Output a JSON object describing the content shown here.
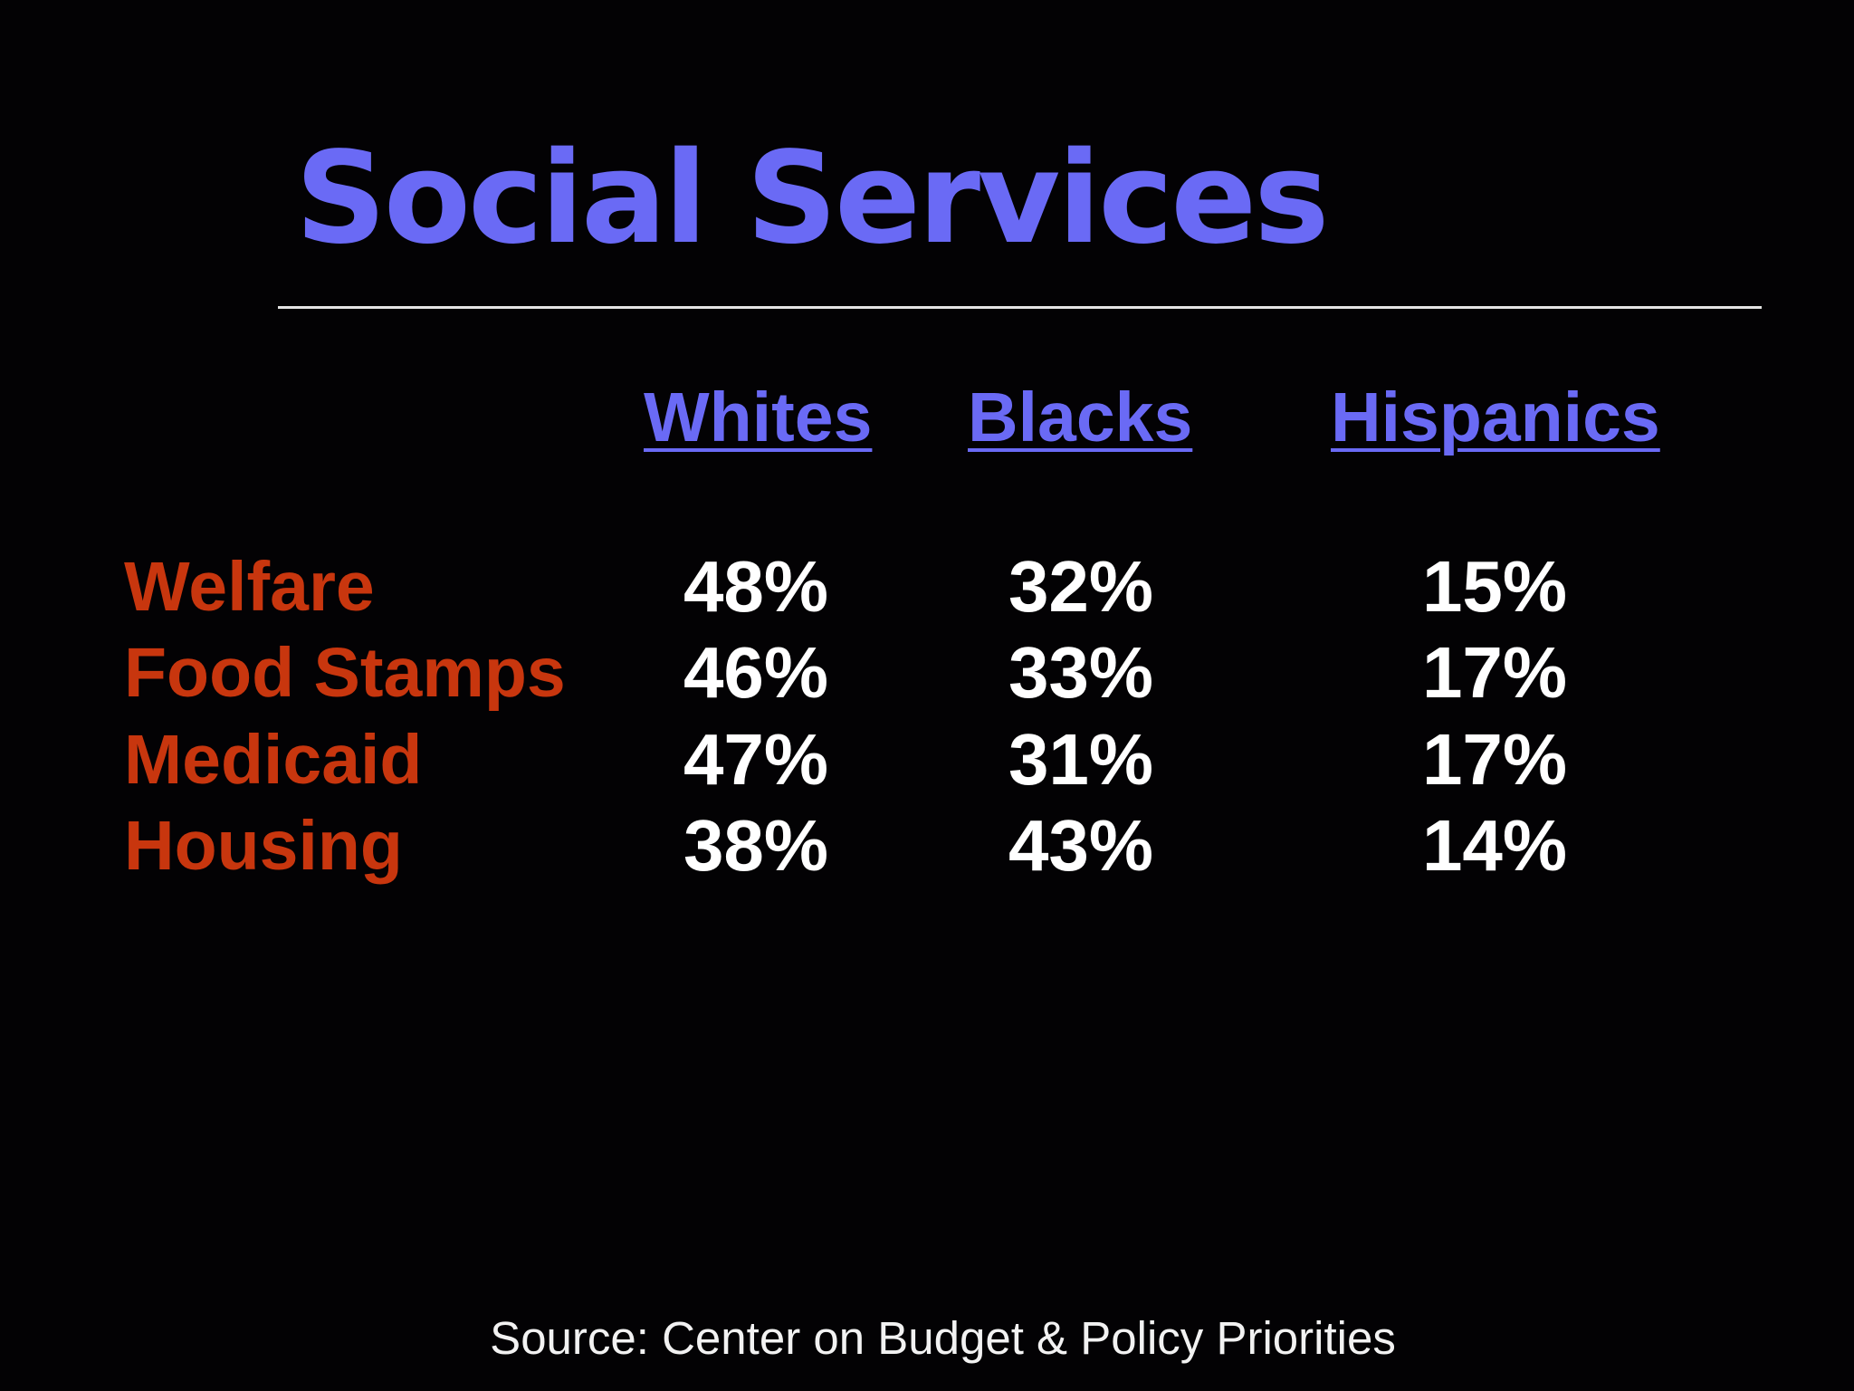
{
  "slide": {
    "title": "Social Services",
    "source": "Source: Center on Budget & Policy Priorities"
  },
  "table": {
    "columns": [
      "Whites",
      "Blacks",
      "Hispanics"
    ],
    "rows": [
      {
        "label": "Welfare",
        "values": [
          "48%",
          "32%",
          "15%"
        ]
      },
      {
        "label": "Food Stamps",
        "values": [
          "46%",
          "33%",
          "17%"
        ]
      },
      {
        "label": "Medicaid",
        "values": [
          "47%",
          "31%",
          "17%"
        ]
      },
      {
        "label": "Housing",
        "values": [
          "38%",
          "43%",
          "14%"
        ]
      }
    ]
  },
  "colors": {
    "background": "#030204",
    "title": "#6a6af5",
    "column_headers": "#6a6af5",
    "row_labels": "#c8360e",
    "values": "#ffffff",
    "rule": "#e4e4e4"
  }
}
